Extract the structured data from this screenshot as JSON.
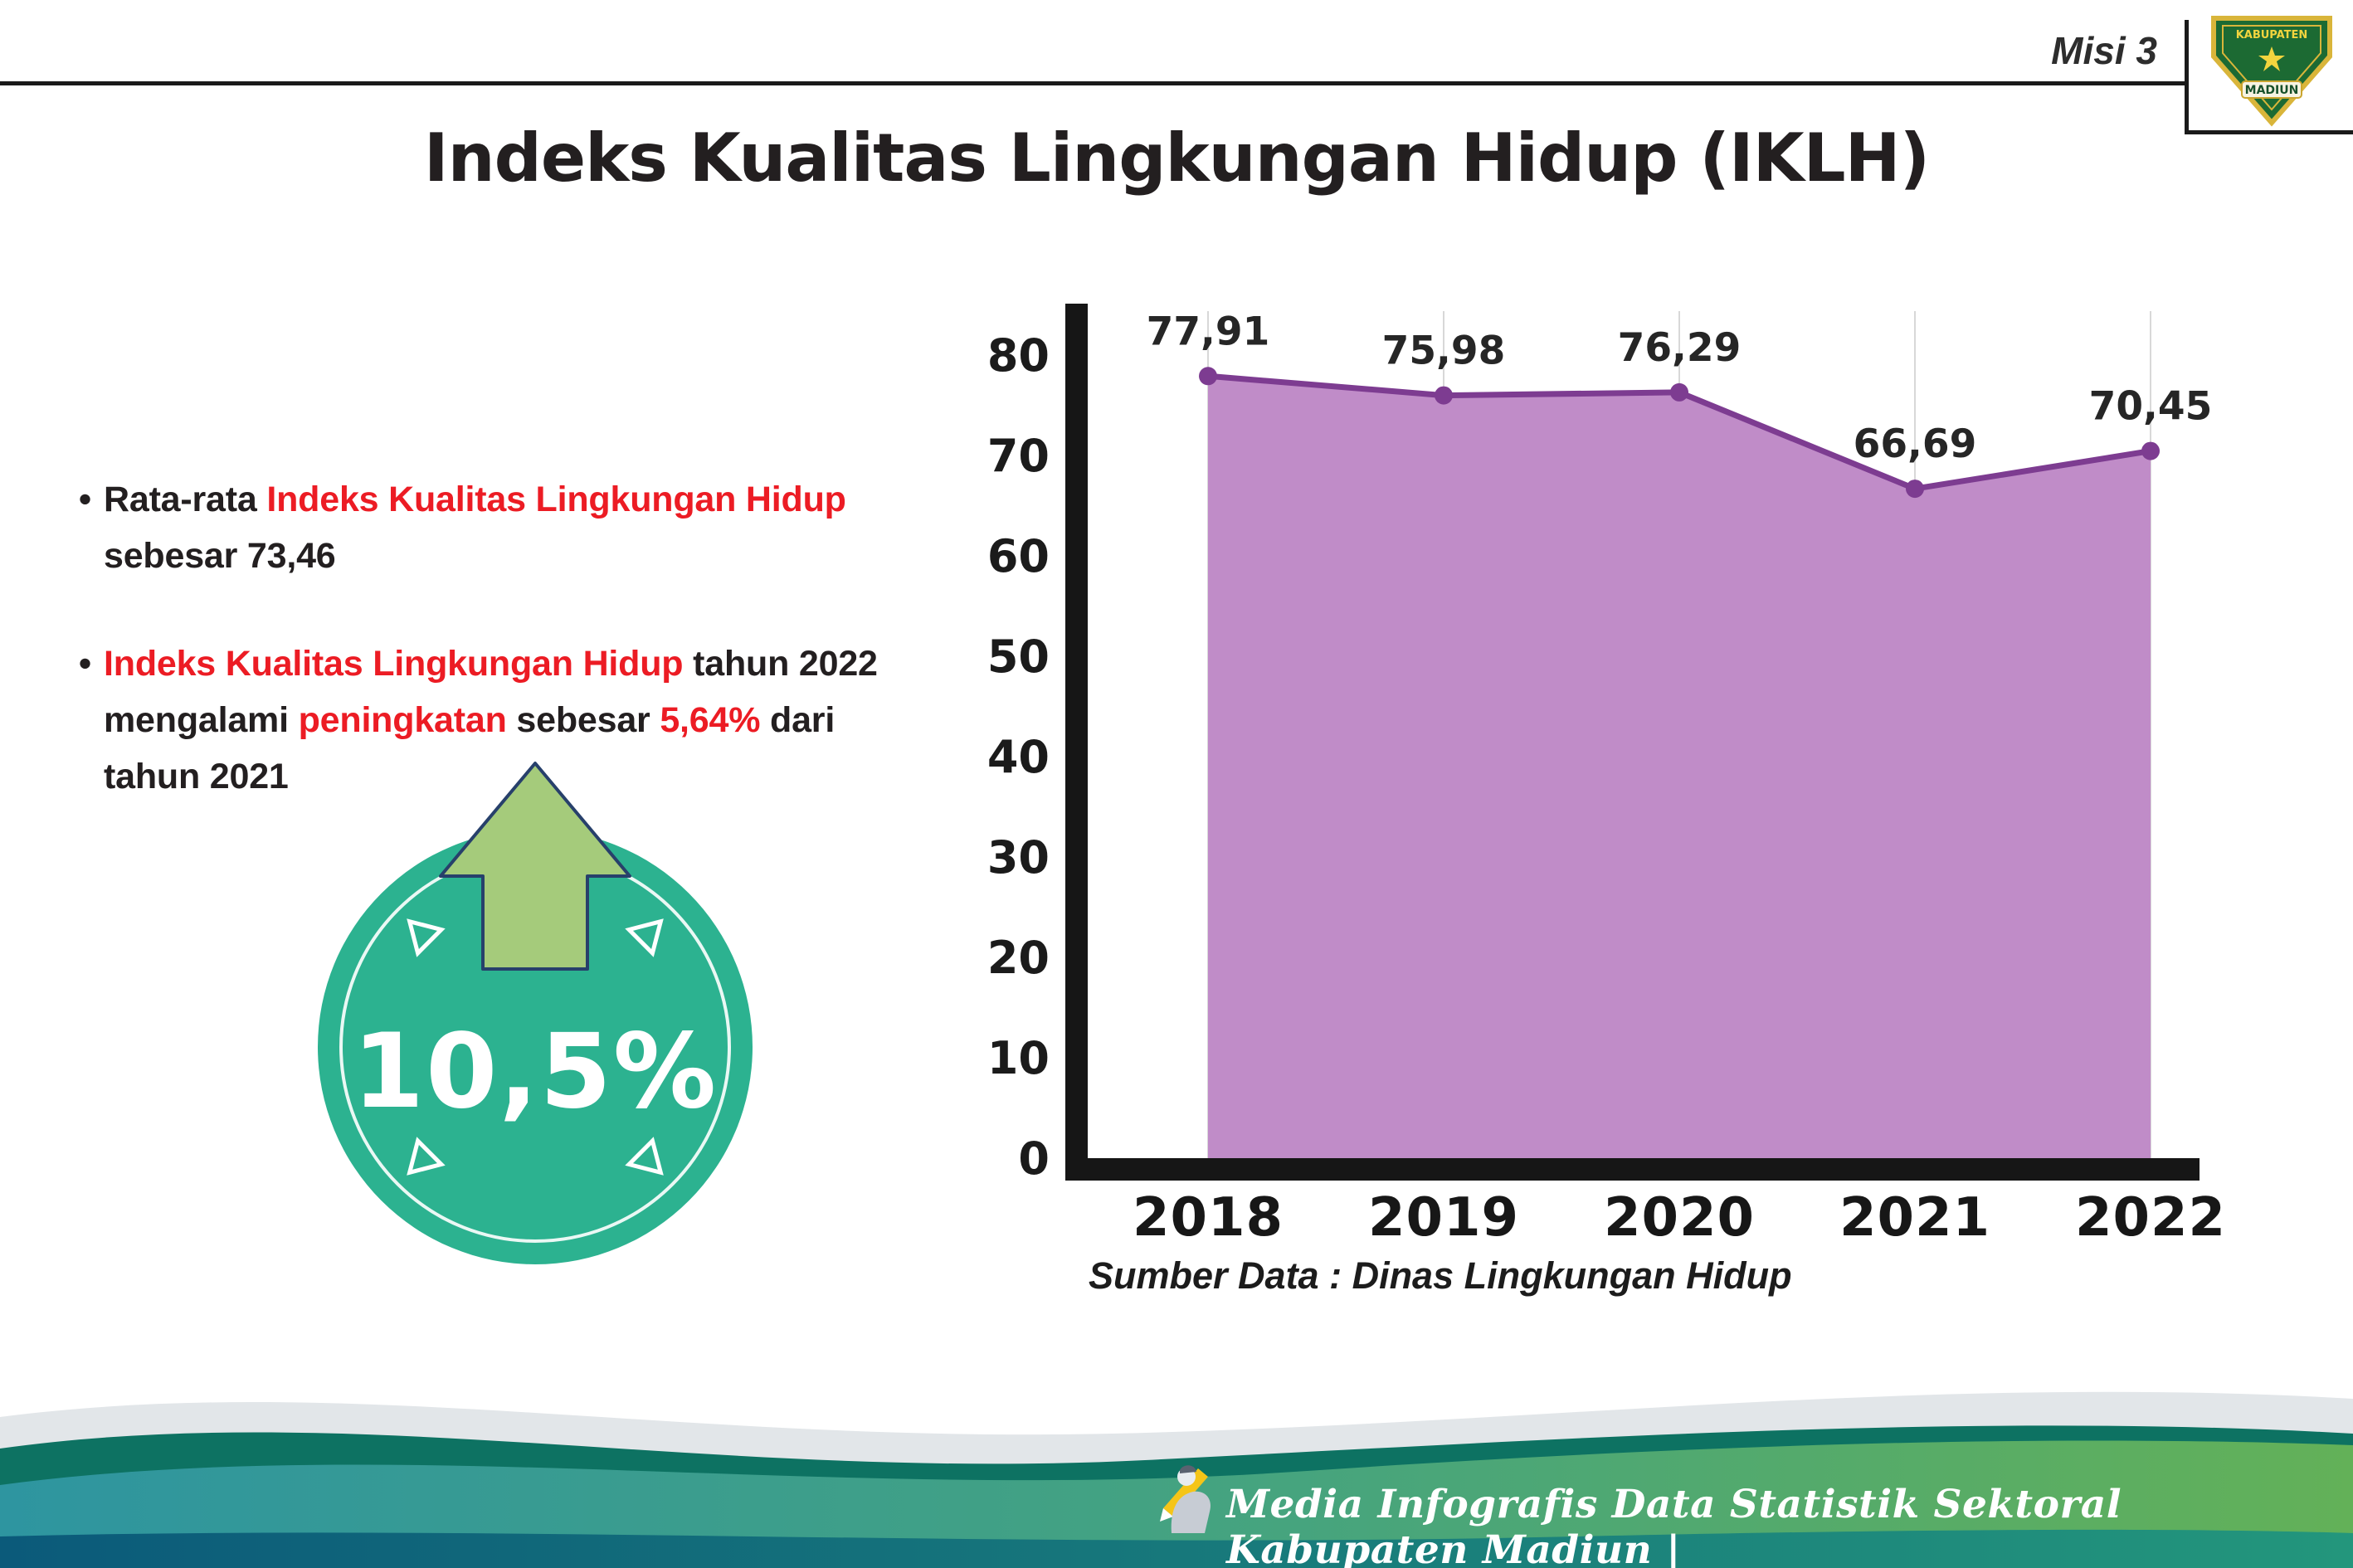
{
  "page": {
    "misi_label": "Misi 3",
    "title": "Indeks Kualitas Lingkungan Hidup (IKLH)"
  },
  "logo": {
    "top_text": "KABUPATEN",
    "bottom_text": "MADIUN"
  },
  "bullets": [
    {
      "lines": [
        [
          {
            "t": "Rata-rata ",
            "red": false
          },
          {
            "t": "Indeks Kualitas Lingkungan Hidup",
            "red": true
          }
        ],
        [
          {
            "t": "sebesar 73,46",
            "red": false
          }
        ]
      ]
    },
    {
      "lines": [
        [
          {
            "t": "Indeks Kualitas Lingkungan Hidup",
            "red": true
          },
          {
            "t": " tahun 2022",
            "red": false
          }
        ],
        [
          {
            "t": "mengalami ",
            "red": false
          },
          {
            "t": "peningkatan",
            "red": true
          },
          {
            "t": " sebesar ",
            "red": false
          },
          {
            "t": "5,64%",
            "red": true
          },
          {
            "t": " dari",
            "red": false
          }
        ],
        [
          {
            "t": "tahun 2021",
            "red": false
          }
        ]
      ]
    }
  ],
  "badge": {
    "value": "10,5%"
  },
  "chart_data": {
    "type": "area",
    "categories": [
      "2018",
      "2019",
      "2020",
      "2021",
      "2022"
    ],
    "values": [
      77.91,
      75.98,
      76.29,
      66.69,
      70.45
    ],
    "value_labels": [
      "77,91",
      "75,98",
      "76,29",
      "66,69",
      "70,45"
    ],
    "title": "",
    "xlabel": "",
    "ylabel": "",
    "ylim": [
      0,
      80
    ],
    "yticks": [
      0,
      10,
      20,
      30,
      40,
      50,
      60,
      70,
      80
    ],
    "grid": "vertical",
    "legend": "none",
    "fill_color": "#c08cc8",
    "line_color": "#7d3c91",
    "source": "Sumber Data : Dinas Lingkungan Hidup"
  },
  "footer": {
    "text": "Media Infografis Data Statistik Sektoral Kabupaten Madiun |"
  },
  "colors": {
    "accent_red": "#ec1c24",
    "badge_teal": "#2cb290",
    "arrow_green": "#a5cb7b",
    "axis_black": "#161616"
  }
}
